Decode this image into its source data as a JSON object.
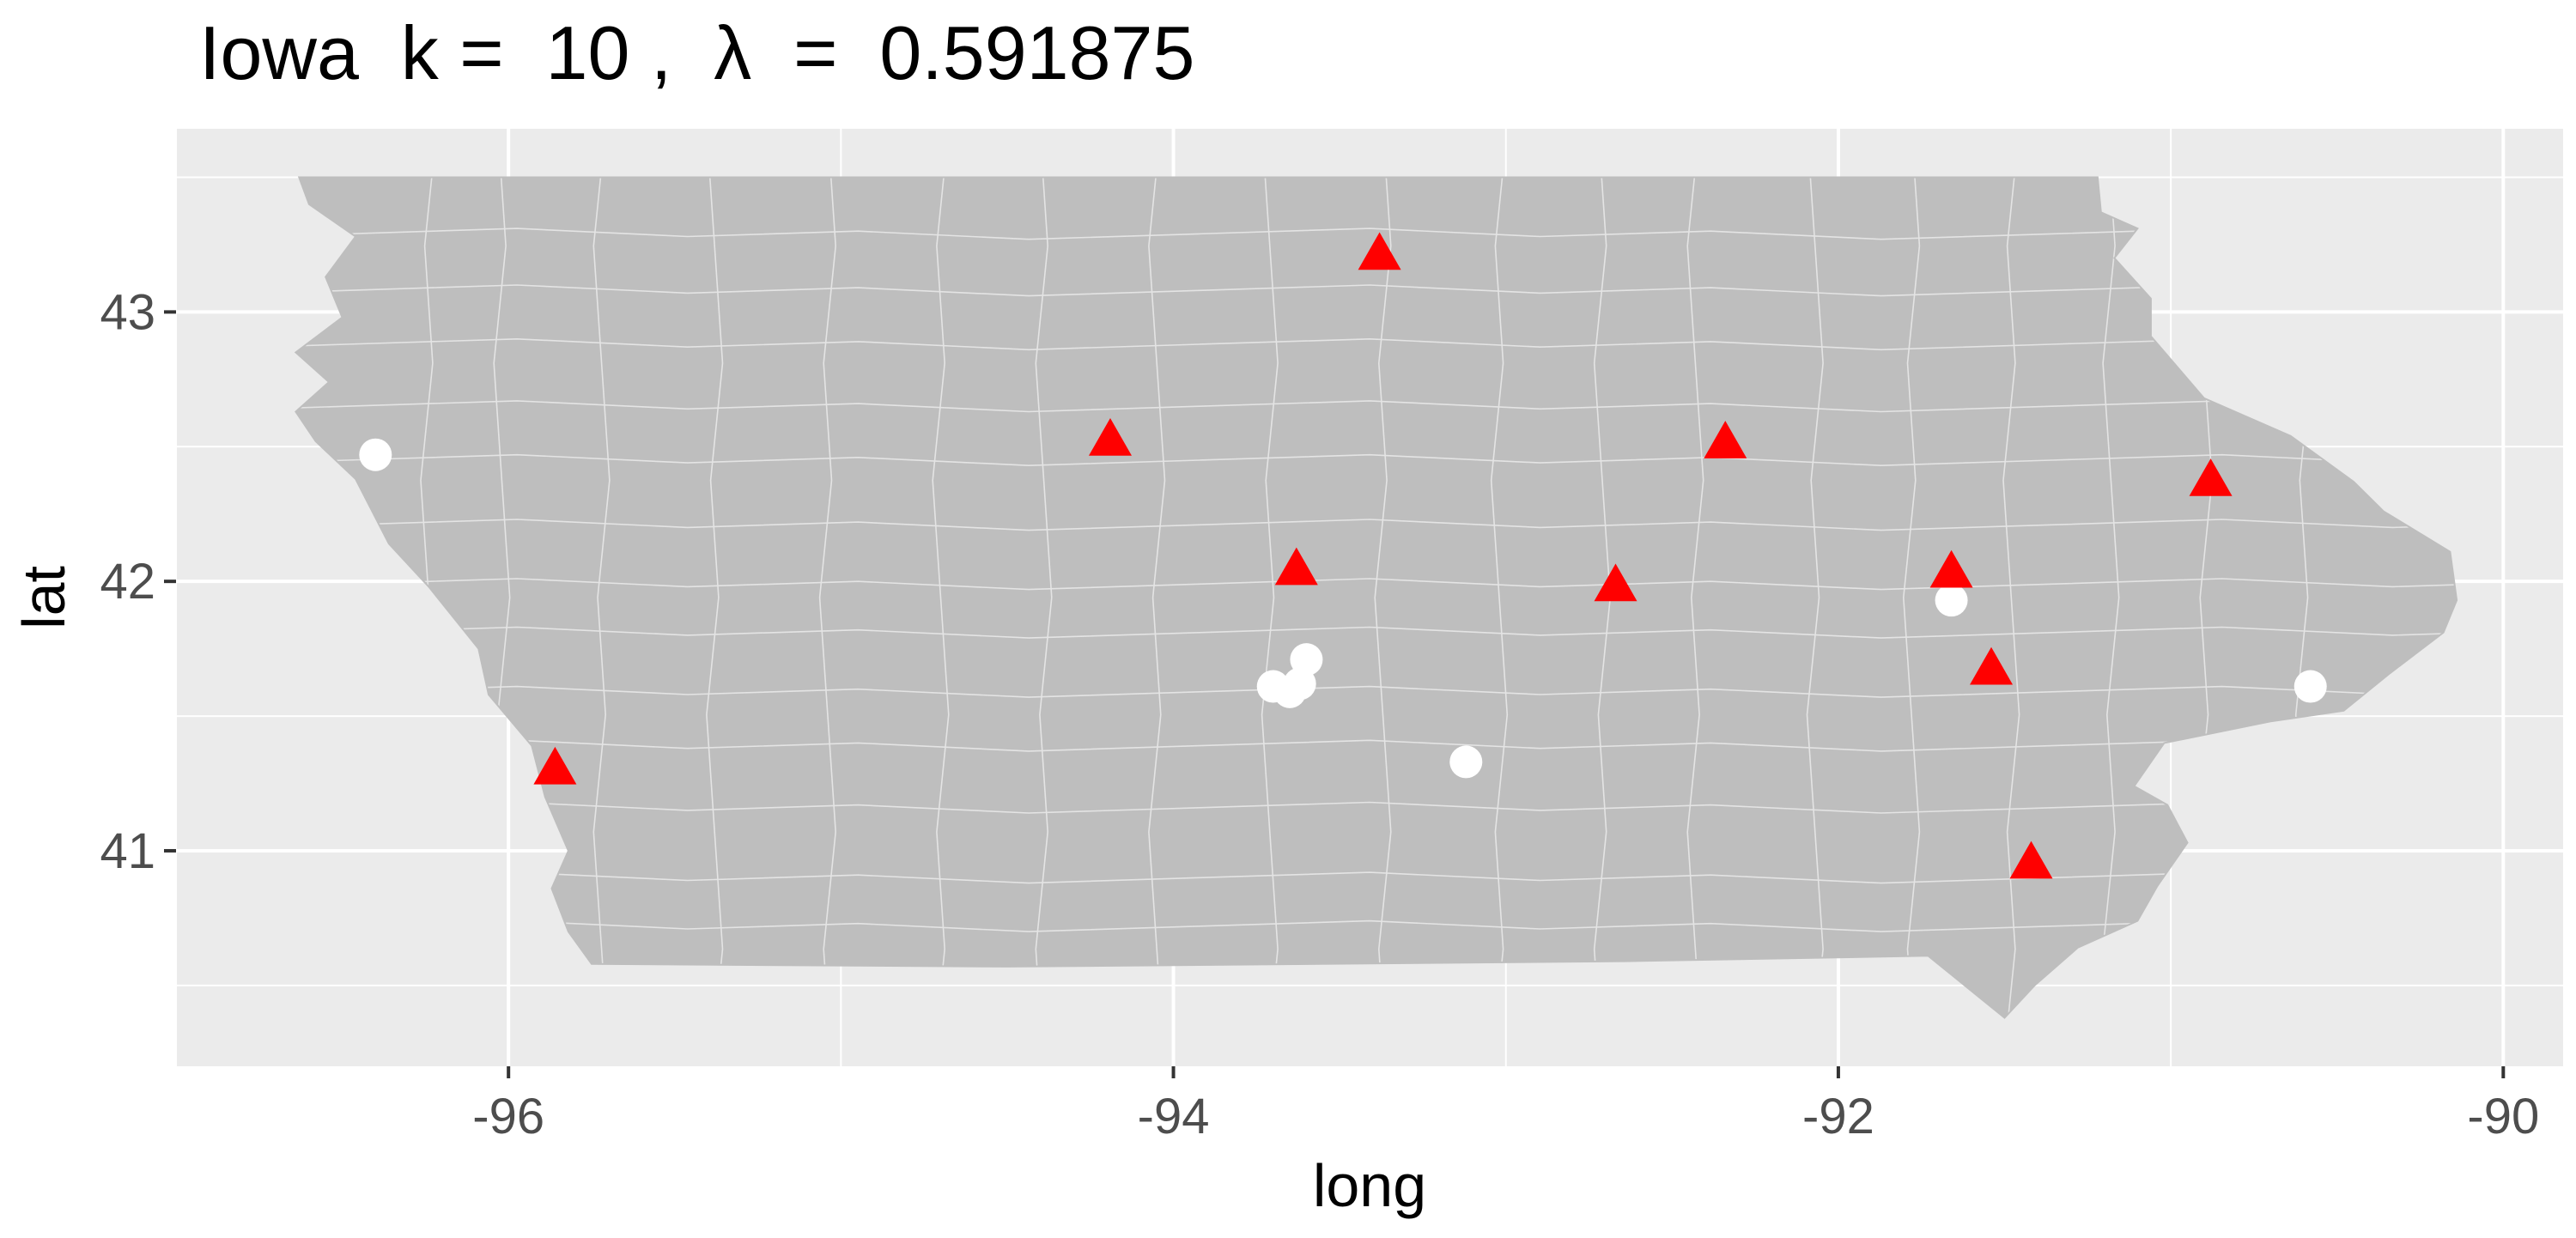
{
  "title": "Iowa  k =  10 ,  λ  =  0.591875",
  "colors": {
    "panel": "#ebebeb",
    "grid": "#ffffff",
    "land": "#bebebe",
    "borders": "#e4e4e4",
    "triangle": "#ff0000",
    "circle": "#ffffff",
    "axis_text": "#4d4d4d",
    "title_text": "#000000"
  },
  "chart_data": {
    "type": "map",
    "xlabel": "long",
    "ylabel": "lat",
    "xlim": [
      -97.0,
      -89.82
    ],
    "ylim": [
      40.2,
      43.68
    ],
    "x_ticks": [
      -96,
      -94,
      -92,
      -90
    ],
    "x_tick_labels": [
      "-96",
      "-94",
      "-92",
      "-90"
    ],
    "x_minor": [
      -97,
      -95,
      -93,
      -91
    ],
    "y_ticks": [
      41,
      42,
      43
    ],
    "y_tick_labels": [
      "41",
      "42",
      "43"
    ],
    "y_minor": [
      40.5,
      41.5,
      42.5,
      43.5
    ],
    "grid": true,
    "legend": "none",
    "triangles": [
      {
        "long": -93.38,
        "lat": 43.21
      },
      {
        "long": -94.19,
        "lat": 42.52
      },
      {
        "long": -92.34,
        "lat": 42.51
      },
      {
        "long": -90.88,
        "lat": 42.37
      },
      {
        "long": -93.63,
        "lat": 42.04
      },
      {
        "long": -92.67,
        "lat": 41.98
      },
      {
        "long": -91.66,
        "lat": 42.03
      },
      {
        "long": -91.54,
        "lat": 41.67
      },
      {
        "long": -95.86,
        "lat": 41.3
      },
      {
        "long": -91.42,
        "lat": 40.95
      }
    ],
    "circles": [
      {
        "long": -96.4,
        "lat": 42.47
      },
      {
        "long": -93.6,
        "lat": 41.71
      },
      {
        "long": -93.7,
        "lat": 41.61
      },
      {
        "long": -93.65,
        "lat": 41.59
      },
      {
        "long": -93.62,
        "lat": 41.62
      },
      {
        "long": -93.12,
        "lat": 41.33
      },
      {
        "long": -91.66,
        "lat": 41.93
      },
      {
        "long": -90.58,
        "lat": 41.61
      }
    ],
    "state_outline": [
      [
        -96.63,
        43.5
      ],
      [
        -91.22,
        43.5
      ],
      [
        -91.21,
        43.37
      ],
      [
        -91.1,
        43.31
      ],
      [
        -91.17,
        43.2
      ],
      [
        -91.06,
        43.05
      ],
      [
        -91.06,
        42.91
      ],
      [
        -90.9,
        42.68
      ],
      [
        -90.64,
        42.54
      ],
      [
        -90.45,
        42.37
      ],
      [
        -90.36,
        42.26
      ],
      [
        -90.16,
        42.11
      ],
      [
        -90.14,
        41.93
      ],
      [
        -90.18,
        41.81
      ],
      [
        -90.34,
        41.66
      ],
      [
        -90.48,
        41.52
      ],
      [
        -90.7,
        41.48
      ],
      [
        -91.02,
        41.4
      ],
      [
        -91.11,
        41.24
      ],
      [
        -91.01,
        41.17
      ],
      [
        -90.95,
        41.03
      ],
      [
        -91.04,
        40.87
      ],
      [
        -91.1,
        40.74
      ],
      [
        -91.28,
        40.64
      ],
      [
        -91.41,
        40.5
      ],
      [
        -91.5,
        40.38
      ],
      [
        -91.73,
        40.61
      ],
      [
        -92.64,
        40.59
      ],
      [
        -93.56,
        40.58
      ],
      [
        -94.5,
        40.57
      ],
      [
        -95.75,
        40.58
      ],
      [
        -95.82,
        40.7
      ],
      [
        -95.87,
        40.86
      ],
      [
        -95.82,
        41.0
      ],
      [
        -95.89,
        41.2
      ],
      [
        -95.93,
        41.39
      ],
      [
        -96.06,
        41.58
      ],
      [
        -96.09,
        41.75
      ],
      [
        -96.24,
        41.98
      ],
      [
        -96.36,
        42.14
      ],
      [
        -96.46,
        42.38
      ],
      [
        -96.58,
        42.52
      ],
      [
        -96.64,
        42.63
      ],
      [
        -96.54,
        42.74
      ],
      [
        -96.64,
        42.85
      ],
      [
        -96.5,
        42.98
      ],
      [
        -96.55,
        43.13
      ],
      [
        -96.46,
        43.28
      ],
      [
        -96.6,
        43.4
      ],
      [
        -96.63,
        43.5
      ]
    ],
    "county_cols": [
      -96.24,
      -96.02,
      -95.72,
      -95.38,
      -95.04,
      -94.7,
      -94.39,
      -94.05,
      -93.71,
      -93.37,
      -93.02,
      -92.71,
      -92.43,
      -92.07,
      -91.78,
      -91.48,
      -91.18,
      -90.9,
      -90.6
    ],
    "county_rows": [
      43.29,
      43.08,
      42.88,
      42.65,
      42.45,
      42.21,
      41.99,
      41.81,
      41.59,
      41.39,
      41.16,
      40.9,
      40.72
    ]
  }
}
